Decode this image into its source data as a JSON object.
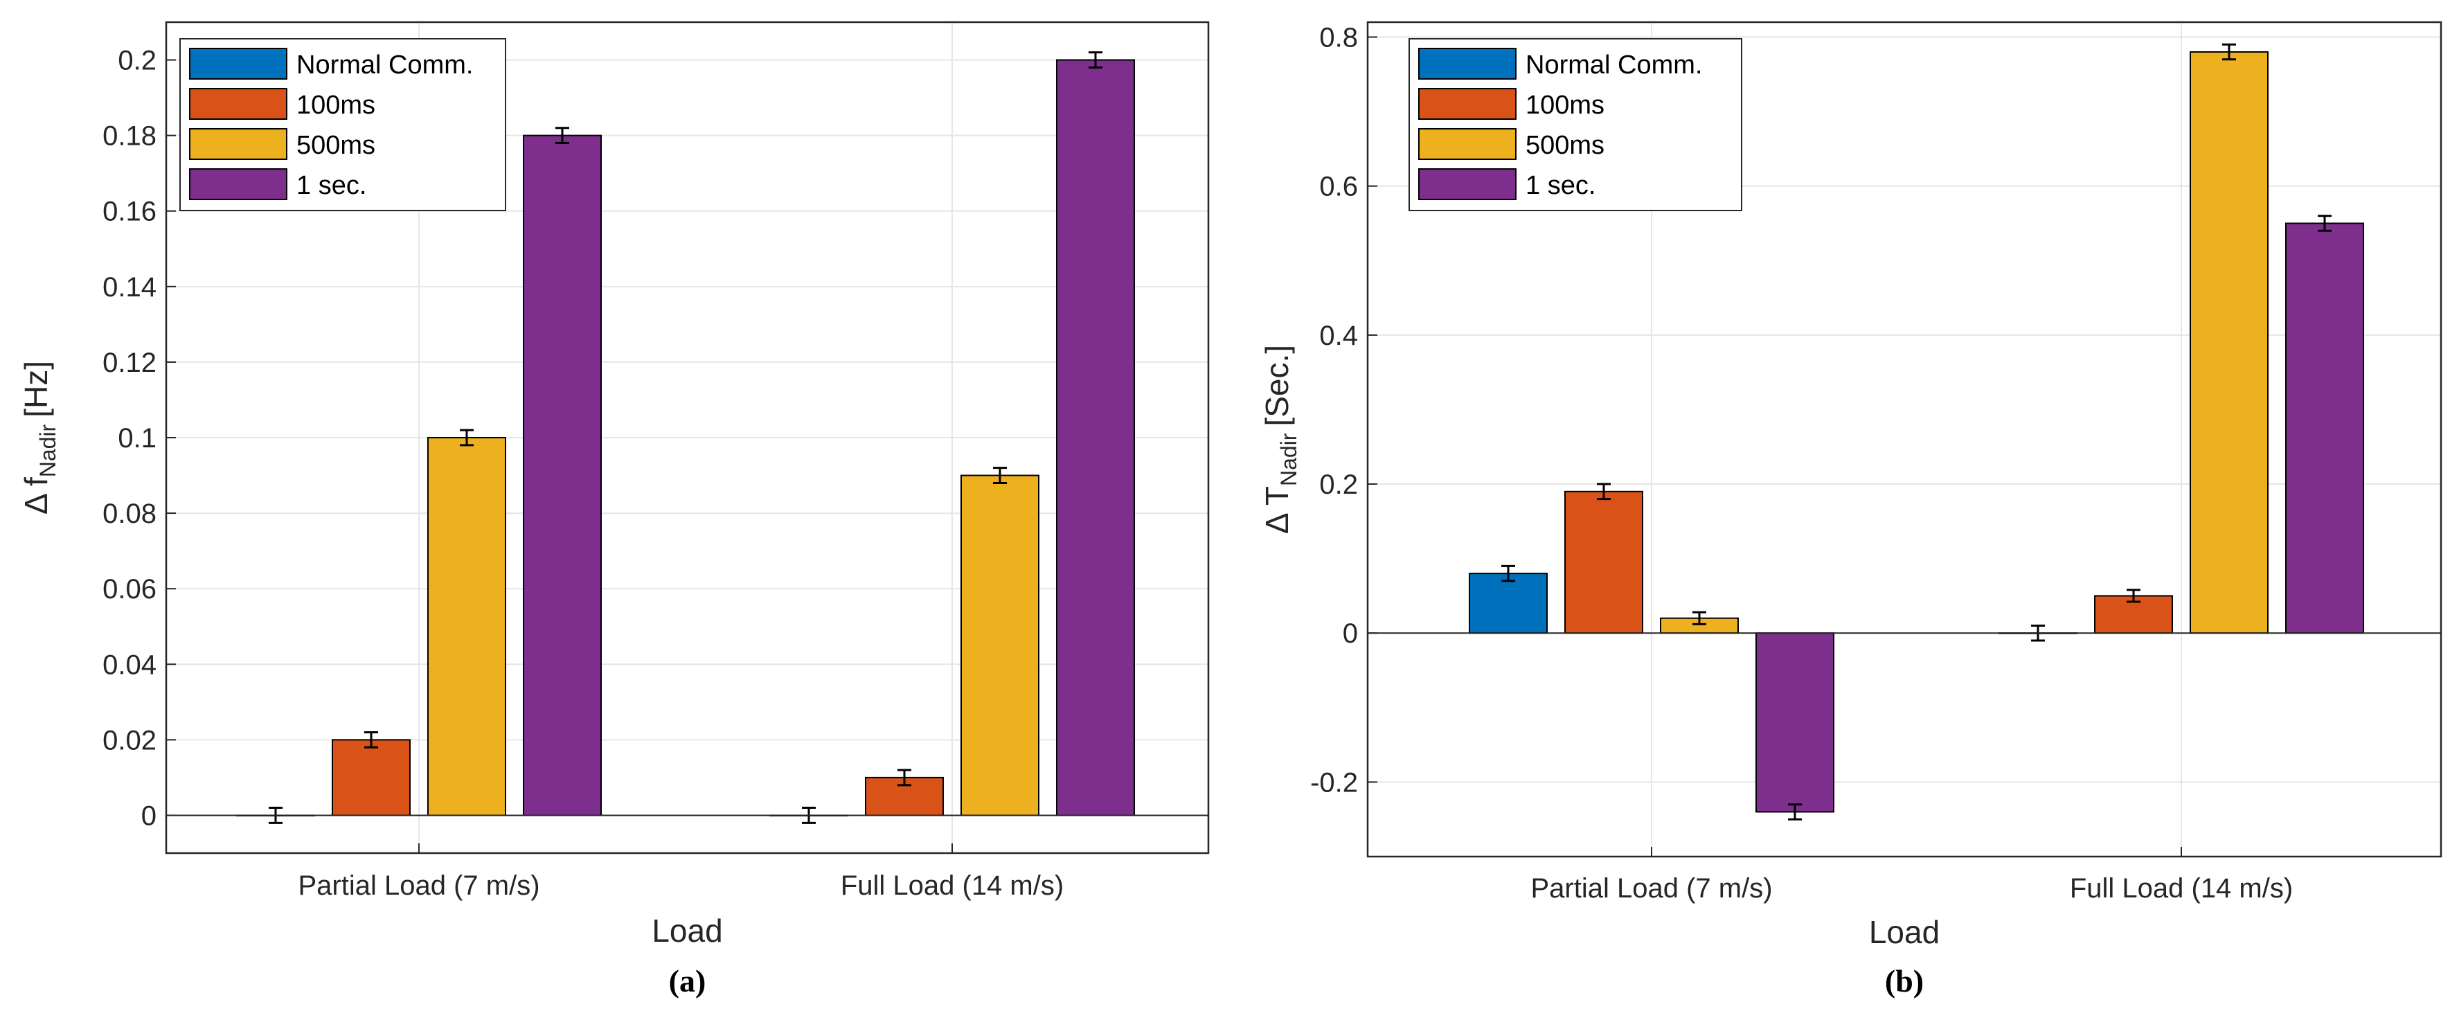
{
  "colors": {
    "normal": "#0072BD",
    "ms100": "#D95319",
    "ms500": "#EDB120",
    "sec1": "#7E2F8E"
  },
  "chart_data": [
    {
      "type": "bar",
      "caption": "(a)",
      "xlabel": "Load",
      "ylabel_prefix": "Δ f",
      "ylabel_sub": "Nadir",
      "ylabel_suffix": "[Hz]",
      "categories": [
        "Partial Load (7 m/s)",
        "Full Load (14 m/s)"
      ],
      "ylim": [
        -0.01,
        0.21
      ],
      "yticks": [
        0,
        0.02,
        0.04,
        0.06,
        0.08,
        0.1,
        0.12,
        0.14,
        0.16,
        0.18,
        0.2
      ],
      "ytick_labels": [
        "0",
        "0.02",
        "0.04",
        "0.06",
        "0.08",
        "0.1",
        "0.12",
        "0.14",
        "0.16",
        "0.18",
        "0.2"
      ],
      "grid": true,
      "legend_position": "top-left",
      "series": [
        {
          "name": "Normal Comm.",
          "color_key": "normal",
          "values": [
            0,
            0
          ],
          "errors": [
            0.002,
            0.002
          ]
        },
        {
          "name": "100ms",
          "color_key": "ms100",
          "values": [
            0.02,
            0.01
          ],
          "errors": [
            0.002,
            0.002
          ]
        },
        {
          "name": "500ms",
          "color_key": "ms500",
          "values": [
            0.1,
            0.09
          ],
          "errors": [
            0.002,
            0.002
          ]
        },
        {
          "name": "1 sec.",
          "color_key": "sec1",
          "values": [
            0.18,
            0.2
          ],
          "errors": [
            0.002,
            0.002
          ]
        }
      ]
    },
    {
      "type": "bar",
      "caption": "(b)",
      "xlabel": "Load",
      "ylabel_prefix": "Δ T",
      "ylabel_sub": "Nadir",
      "ylabel_suffix": "[Sec.]",
      "categories": [
        "Partial Load (7 m/s)",
        "Full Load (14 m/s)"
      ],
      "ylim": [
        -0.3,
        0.82
      ],
      "yticks": [
        -0.2,
        0,
        0.2,
        0.4,
        0.6,
        0.8
      ],
      "ytick_labels": [
        "-0.2",
        "0",
        "0.2",
        "0.4",
        "0.6",
        "0.8"
      ],
      "grid": true,
      "legend_position": "top-left",
      "series": [
        {
          "name": "Normal Comm.",
          "color_key": "normal",
          "values": [
            0.08,
            0
          ],
          "errors": [
            0.01,
            0.01
          ]
        },
        {
          "name": "100ms",
          "color_key": "ms100",
          "values": [
            0.19,
            0.05
          ],
          "errors": [
            0.01,
            0.008
          ]
        },
        {
          "name": "500ms",
          "color_key": "ms500",
          "values": [
            0.02,
            0.78
          ],
          "errors": [
            0.008,
            0.01
          ]
        },
        {
          "name": "1 sec.",
          "color_key": "sec1",
          "values": [
            -0.24,
            0.55
          ],
          "errors": [
            0.01,
            0.01
          ]
        }
      ]
    }
  ]
}
